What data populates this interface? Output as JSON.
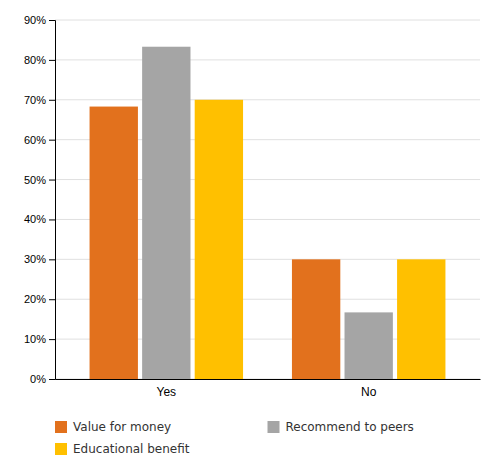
{
  "chart_data": {
    "type": "bar",
    "categories": [
      "Yes",
      "No"
    ],
    "series": [
      {
        "name": "Value for money",
        "color": "#E2711D",
        "values": [
          0.683,
          0.3
        ]
      },
      {
        "name": "Recommend to peers",
        "color": "#A5A5A5",
        "values": [
          0.833,
          0.167
        ]
      },
      {
        "name": "Educational benefit",
        "color": "#FFC000",
        "values": [
          0.7,
          0.3
        ]
      }
    ],
    "ylim": [
      0,
      0.9
    ],
    "yticks": [
      {
        "value": 0,
        "label": "0%"
      },
      {
        "value": 0.1,
        "label": "10%"
      },
      {
        "value": 0.2,
        "label": "20%"
      },
      {
        "value": 0.3,
        "label": "30%"
      },
      {
        "value": 0.4,
        "label": "40%"
      },
      {
        "value": 0.5,
        "label": "50%"
      },
      {
        "value": 0.6,
        "label": "60%"
      },
      {
        "value": 0.7,
        "label": "70%"
      },
      {
        "value": 0.8,
        "label": "80%"
      },
      {
        "value": 0.9,
        "label": "90%"
      }
    ],
    "grid": true,
    "legend": "bottom"
  }
}
